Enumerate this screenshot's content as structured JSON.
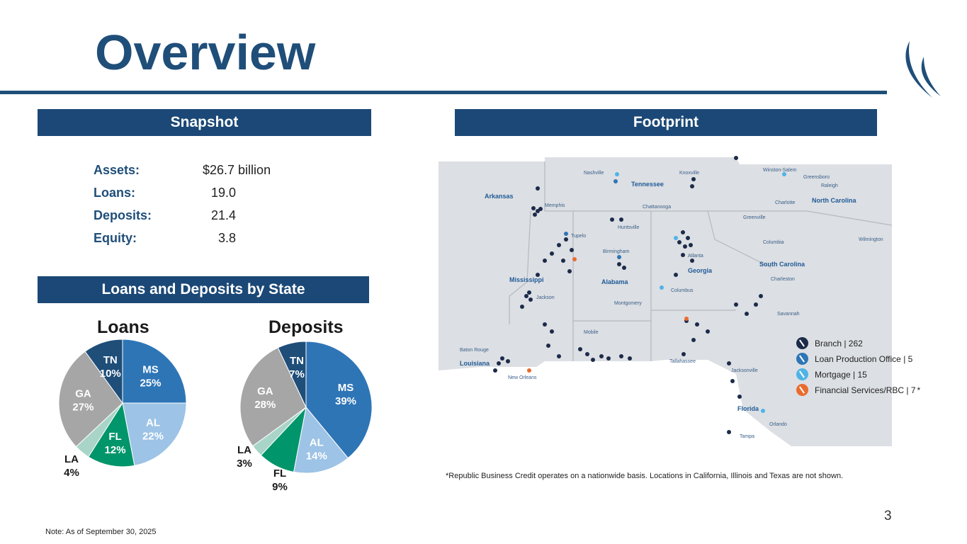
{
  "header": {
    "title": "Overview"
  },
  "snapshot": {
    "banner": "Snapshot",
    "rows": [
      {
        "label": "Assets:",
        "value": "$26.7 billion"
      },
      {
        "label": "Loans:",
        "value": "19.0"
      },
      {
        "label": "Deposits:",
        "value": "21.4"
      },
      {
        "label": "Equity:",
        "value": "3.8"
      }
    ]
  },
  "footprint": {
    "banner": "Footprint"
  },
  "state_section": {
    "banner": "Loans and Deposits by State"
  },
  "chart_data": [
    {
      "type": "pie",
      "title": "Loans",
      "categories": [
        "MS",
        "AL",
        "FL",
        "LA",
        "GA",
        "TN"
      ],
      "values": [
        25,
        22,
        12,
        4,
        27,
        10
      ],
      "labels": [
        "25%",
        "22%",
        "12%",
        "4%",
        "27%",
        "10%"
      ],
      "colors": [
        "#2e75b6",
        "#9dc3e6",
        "#00956a",
        "#a8d5c8",
        "#a6a6a6",
        "#1f4e79"
      ]
    },
    {
      "type": "pie",
      "title": "Deposits",
      "categories": [
        "MS",
        "AL",
        "FL",
        "LA",
        "GA",
        "TN"
      ],
      "values": [
        39,
        14,
        9,
        3,
        28,
        7
      ],
      "labels": [
        "39%",
        "14%",
        "9%",
        "3%",
        "28%",
        "7%"
      ],
      "colors": [
        "#2e75b6",
        "#9dc3e6",
        "#00956a",
        "#a8d5c8",
        "#a6a6a6",
        "#1f4e79"
      ]
    }
  ],
  "map": {
    "states": [
      "Arkansas",
      "Tennessee",
      "North Carolina",
      "Mississippi",
      "Alabama",
      "Georgia",
      "South Carolina",
      "Louisiana",
      "Florida"
    ],
    "cities": [
      "Nashville",
      "Knoxville",
      "Winston-Salem",
      "Greensboro",
      "Raleigh",
      "Memphis",
      "Chattanooga",
      "Charlotte",
      "Greenville",
      "Huntsville",
      "Tupelo",
      "Columbia",
      "Wilmington",
      "Birmingham",
      "Atlanta",
      "Charleston",
      "Jackson",
      "Columbus",
      "Montgomery",
      "Savannah",
      "Mobile",
      "Baton Rouge",
      "New Orleans",
      "Tallahassee",
      "Jacksonville",
      "Orlando",
      "Tampa"
    ]
  },
  "legend": [
    {
      "label": "Branch | 262",
      "color": "#1c2b4a",
      "icon": "branch-icon"
    },
    {
      "label": "Loan Production Office | 5",
      "color": "#2e75b6",
      "icon": "loan-office-icon"
    },
    {
      "label": "Mortgage | 15",
      "color": "#4fb3e8",
      "icon": "mortgage-icon"
    },
    {
      "label": "Financial Services/RBC | 7",
      "color": "#ea6b2d",
      "icon": "financial-services-icon",
      "marker": "*"
    }
  ],
  "footnote": "*Republic Business Credit operates on a nationwide basis. Locations in California, Illinois and Texas are not shown.",
  "note": "Note: As of September 30, 2025",
  "page_number": "3"
}
